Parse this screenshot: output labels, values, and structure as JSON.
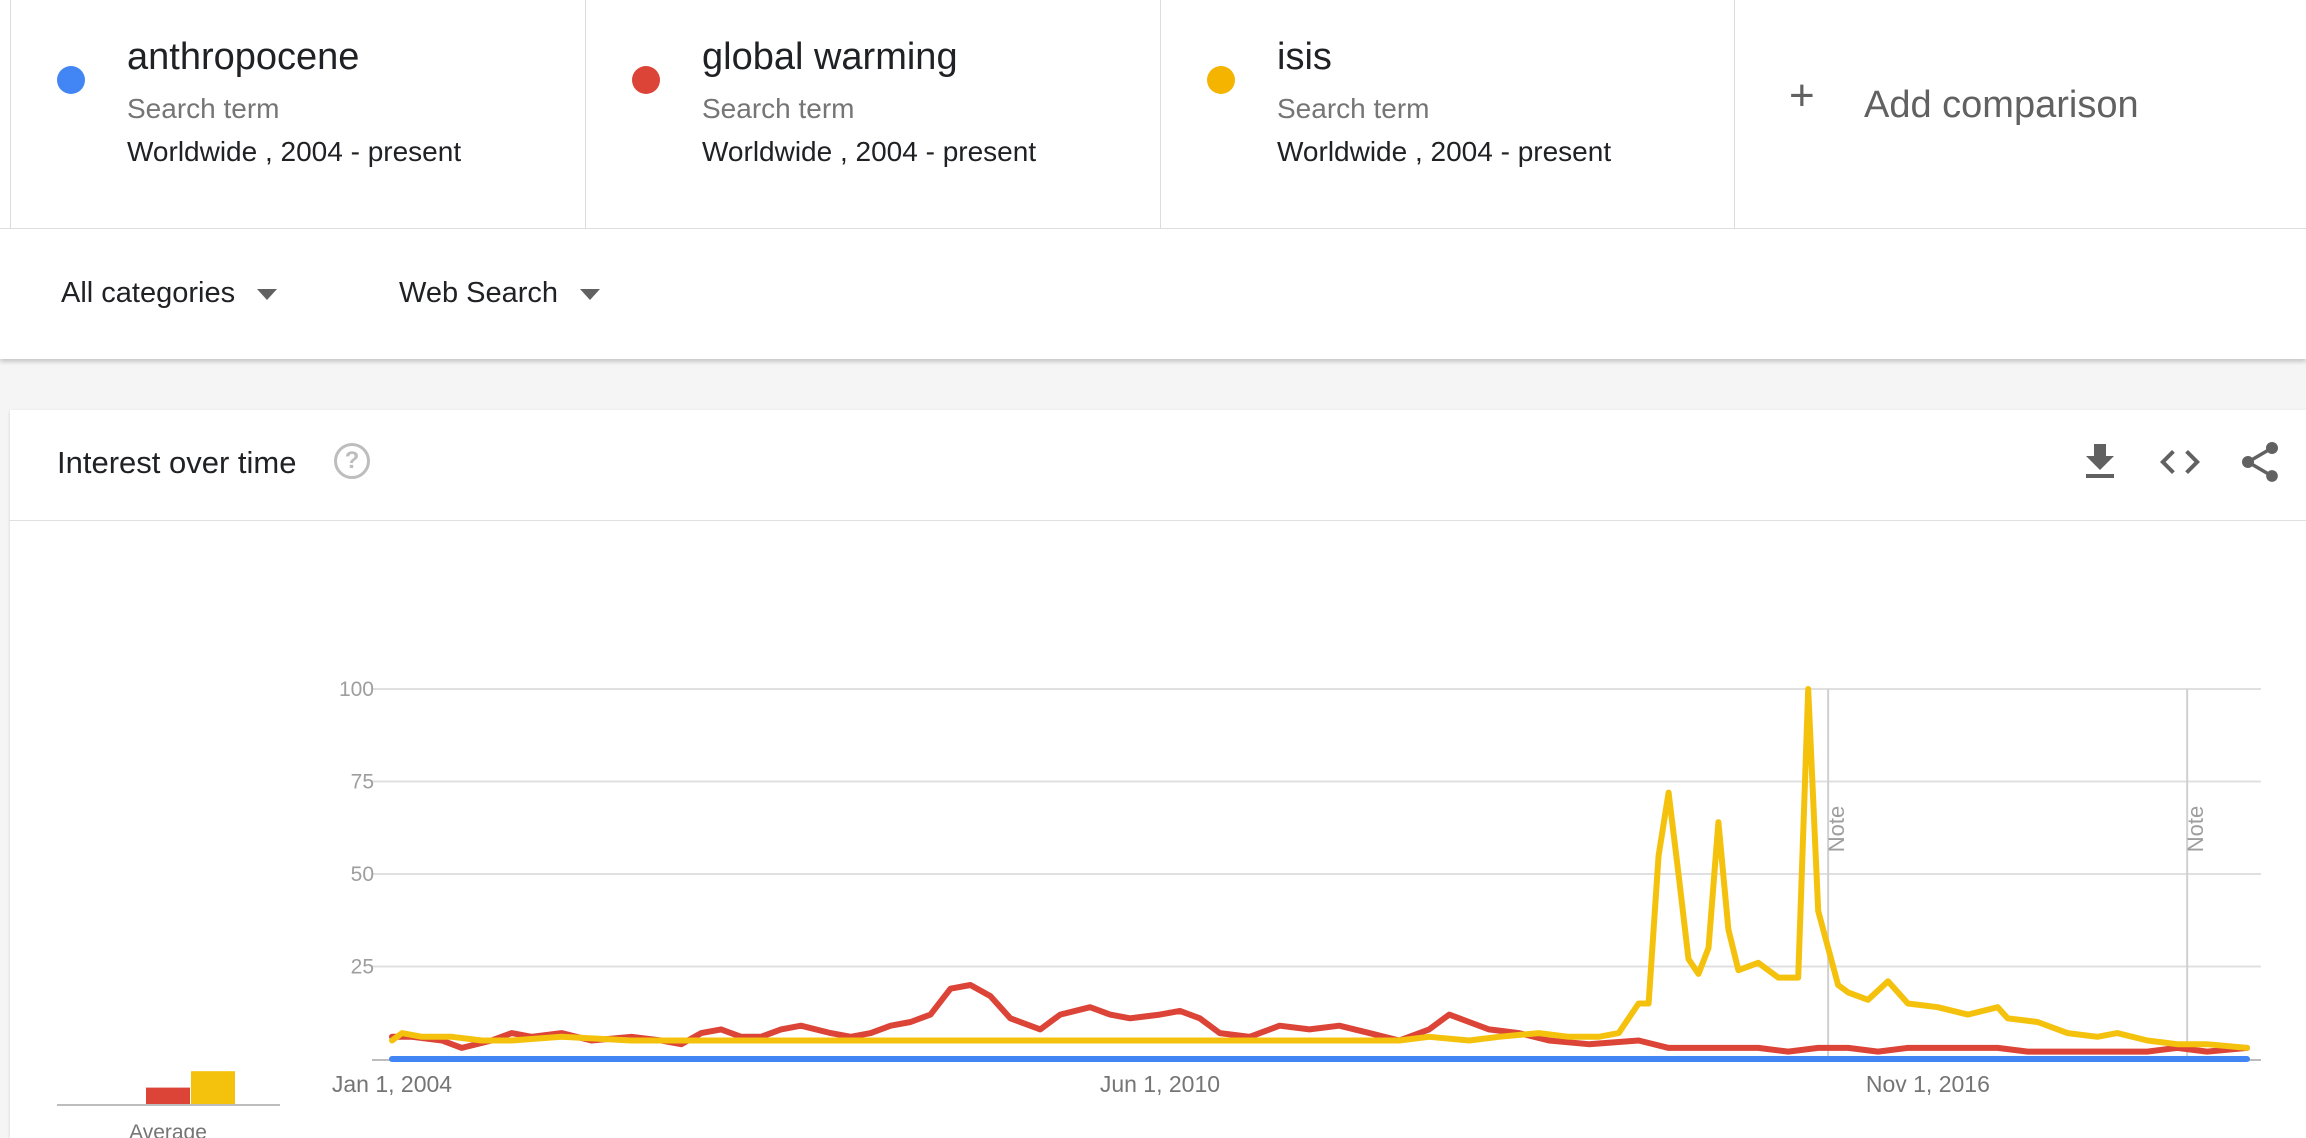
{
  "compare": {
    "terms": [
      {
        "name": "anthropocene",
        "type": "Search term",
        "scope": "Worldwide , 2004 - present",
        "color": "#4285f4"
      },
      {
        "name": "global warming",
        "type": "Search term",
        "scope": "Worldwide , 2004 - present",
        "color": "#db4437"
      },
      {
        "name": "isis",
        "type": "Search term",
        "scope": "Worldwide , 2004 - present",
        "color": "#f4b400"
      }
    ],
    "add_icon": "+",
    "add_label": "Add comparison"
  },
  "filters": {
    "category": "All categories",
    "search_type": "Web Search"
  },
  "card": {
    "title": "Interest over time",
    "help_icon": "?",
    "icons": [
      "download-icon",
      "embed-code-icon",
      "share-icon"
    ]
  },
  "chart_data": {
    "type": "line",
    "title": "",
    "xlabel": "",
    "ylabel": "",
    "ylim": [
      0,
      100
    ],
    "y_ticks": [
      100,
      75,
      50,
      25
    ],
    "x_range": [
      "2004-01",
      "2019-07"
    ],
    "x_ticks": [
      {
        "label": "Jan 1, 2004",
        "date": "2004-01"
      },
      {
        "label": "Jun 1, 2010",
        "date": "2010-06"
      },
      {
        "label": "Nov 1, 2016",
        "date": "2016-11"
      }
    ],
    "notes": [
      {
        "label": "Note",
        "date": "2016-01"
      },
      {
        "label": "Note",
        "date": "2019-01"
      }
    ],
    "averages": {
      "label": "Average",
      "values": [
        0,
        4,
        8
      ]
    },
    "grid": true,
    "legend": "none",
    "series": [
      {
        "name": "anthropocene",
        "color": "#4285f4",
        "points": [
          [
            "2004-01",
            0
          ],
          [
            "2019-07",
            0
          ]
        ]
      },
      {
        "name": "global warming",
        "color": "#db4437",
        "points": [
          [
            "2004-01",
            6
          ],
          [
            "2004-03",
            6
          ],
          [
            "2004-06",
            5
          ],
          [
            "2004-08",
            3
          ],
          [
            "2004-11",
            5
          ],
          [
            "2005-01",
            7
          ],
          [
            "2005-03",
            6
          ],
          [
            "2005-06",
            7
          ],
          [
            "2005-09",
            5
          ],
          [
            "2006-01",
            6
          ],
          [
            "2006-04",
            5
          ],
          [
            "2006-06",
            4
          ],
          [
            "2006-08",
            7
          ],
          [
            "2006-10",
            8
          ],
          [
            "2006-12",
            6
          ],
          [
            "2007-02",
            6
          ],
          [
            "2007-04",
            8
          ],
          [
            "2007-06",
            9
          ],
          [
            "2007-09",
            7
          ],
          [
            "2007-11",
            6
          ],
          [
            "2008-01",
            7
          ],
          [
            "2008-03",
            9
          ],
          [
            "2008-05",
            10
          ],
          [
            "2008-07",
            12
          ],
          [
            "2008-09",
            19
          ],
          [
            "2008-11",
            20
          ],
          [
            "2009-01",
            17
          ],
          [
            "2009-03",
            11
          ],
          [
            "2009-06",
            8
          ],
          [
            "2009-08",
            12
          ],
          [
            "2009-11",
            14
          ],
          [
            "2010-01",
            12
          ],
          [
            "2010-03",
            11
          ],
          [
            "2010-06",
            12
          ],
          [
            "2010-08",
            13
          ],
          [
            "2010-10",
            11
          ],
          [
            "2010-12",
            7
          ],
          [
            "2011-03",
            6
          ],
          [
            "2011-06",
            9
          ],
          [
            "2011-09",
            8
          ],
          [
            "2011-12",
            9
          ],
          [
            "2012-03",
            7
          ],
          [
            "2012-06",
            5
          ],
          [
            "2012-09",
            8
          ],
          [
            "2012-11",
            12
          ],
          [
            "2013-01",
            10
          ],
          [
            "2013-03",
            8
          ],
          [
            "2013-06",
            7
          ],
          [
            "2013-09",
            5
          ],
          [
            "2014-01",
            4
          ],
          [
            "2014-06",
            5
          ],
          [
            "2014-09",
            3
          ],
          [
            "2015-01",
            3
          ],
          [
            "2015-06",
            3
          ],
          [
            "2015-09",
            2
          ],
          [
            "2015-12",
            3
          ],
          [
            "2016-03",
            3
          ],
          [
            "2016-06",
            2
          ],
          [
            "2016-09",
            3
          ],
          [
            "2016-12",
            3
          ],
          [
            "2017-03",
            3
          ],
          [
            "2017-06",
            3
          ],
          [
            "2017-09",
            2
          ],
          [
            "2017-12",
            2
          ],
          [
            "2018-03",
            2
          ],
          [
            "2018-06",
            2
          ],
          [
            "2018-09",
            2
          ],
          [
            "2018-12",
            3
          ],
          [
            "2019-03",
            2
          ],
          [
            "2019-07",
            3
          ]
        ]
      },
      {
        "name": "isis",
        "color": "#f4c20d",
        "points": [
          [
            "2004-01",
            5
          ],
          [
            "2004-02",
            7
          ],
          [
            "2004-04",
            6
          ],
          [
            "2004-07",
            6
          ],
          [
            "2004-10",
            5
          ],
          [
            "2005-01",
            5
          ],
          [
            "2005-06",
            6
          ],
          [
            "2006-01",
            5
          ],
          [
            "2006-06",
            5
          ],
          [
            "2007-01",
            5
          ],
          [
            "2007-06",
            5
          ],
          [
            "2008-01",
            5
          ],
          [
            "2008-06",
            5
          ],
          [
            "2009-01",
            5
          ],
          [
            "2009-06",
            5
          ],
          [
            "2010-01",
            5
          ],
          [
            "2010-06",
            5
          ],
          [
            "2011-01",
            5
          ],
          [
            "2011-06",
            5
          ],
          [
            "2012-01",
            5
          ],
          [
            "2012-06",
            5
          ],
          [
            "2012-09",
            6
          ],
          [
            "2013-01",
            5
          ],
          [
            "2013-04",
            6
          ],
          [
            "2013-08",
            7
          ],
          [
            "2013-11",
            6
          ],
          [
            "2014-02",
            6
          ],
          [
            "2014-04",
            7
          ],
          [
            "2014-06",
            15
          ],
          [
            "2014-07",
            15
          ],
          [
            "2014-08",
            55
          ],
          [
            "2014-09",
            72
          ],
          [
            "2014-10",
            50
          ],
          [
            "2014-11",
            27
          ],
          [
            "2014-12",
            23
          ],
          [
            "2015-01",
            30
          ],
          [
            "2015-02",
            64
          ],
          [
            "2015-03",
            35
          ],
          [
            "2015-04",
            24
          ],
          [
            "2015-06",
            26
          ],
          [
            "2015-08",
            22
          ],
          [
            "2015-10",
            22
          ],
          [
            "2015-11",
            100
          ],
          [
            "2015-12",
            40
          ],
          [
            "2016-02",
            20
          ],
          [
            "2016-03",
            18
          ],
          [
            "2016-05",
            16
          ],
          [
            "2016-07",
            21
          ],
          [
            "2016-09",
            15
          ],
          [
            "2016-12",
            14
          ],
          [
            "2017-03",
            12
          ],
          [
            "2017-06",
            14
          ],
          [
            "2017-07",
            11
          ],
          [
            "2017-10",
            10
          ],
          [
            "2018-01",
            7
          ],
          [
            "2018-04",
            6
          ],
          [
            "2018-06",
            7
          ],
          [
            "2018-09",
            5
          ],
          [
            "2018-12",
            4
          ],
          [
            "2019-03",
            4
          ],
          [
            "2019-07",
            3
          ]
        ]
      }
    ]
  }
}
